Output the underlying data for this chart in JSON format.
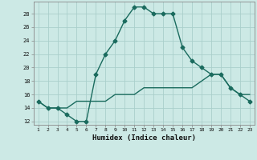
{
  "xlabel": "Humidex (Indice chaleur)",
  "bg_color": "#cce9e5",
  "grid_color": "#aacfcb",
  "line_color": "#1a6b5e",
  "x_hours": [
    1,
    2,
    3,
    4,
    5,
    6,
    7,
    8,
    9,
    10,
    11,
    12,
    13,
    14,
    15,
    16,
    17,
    18,
    19,
    20,
    21,
    22,
    23
  ],
  "humidex_main": [
    15,
    14,
    14,
    13,
    12,
    12,
    19,
    22,
    24,
    27,
    29,
    29,
    28,
    28,
    28,
    23,
    21,
    20,
    19,
    19,
    17,
    16,
    15
  ],
  "humidex_ref": [
    15,
    14,
    14,
    14,
    15,
    15,
    15,
    15,
    16,
    16,
    16,
    17,
    17,
    17,
    17,
    17,
    17,
    18,
    19,
    19,
    17,
    16,
    16
  ],
  "yticks": [
    12,
    14,
    16,
    18,
    20,
    22,
    24,
    26,
    28
  ],
  "ylim_min": 11.5,
  "ylim_max": 29.8,
  "xlim_min": 0.5,
  "xlim_max": 23.5
}
